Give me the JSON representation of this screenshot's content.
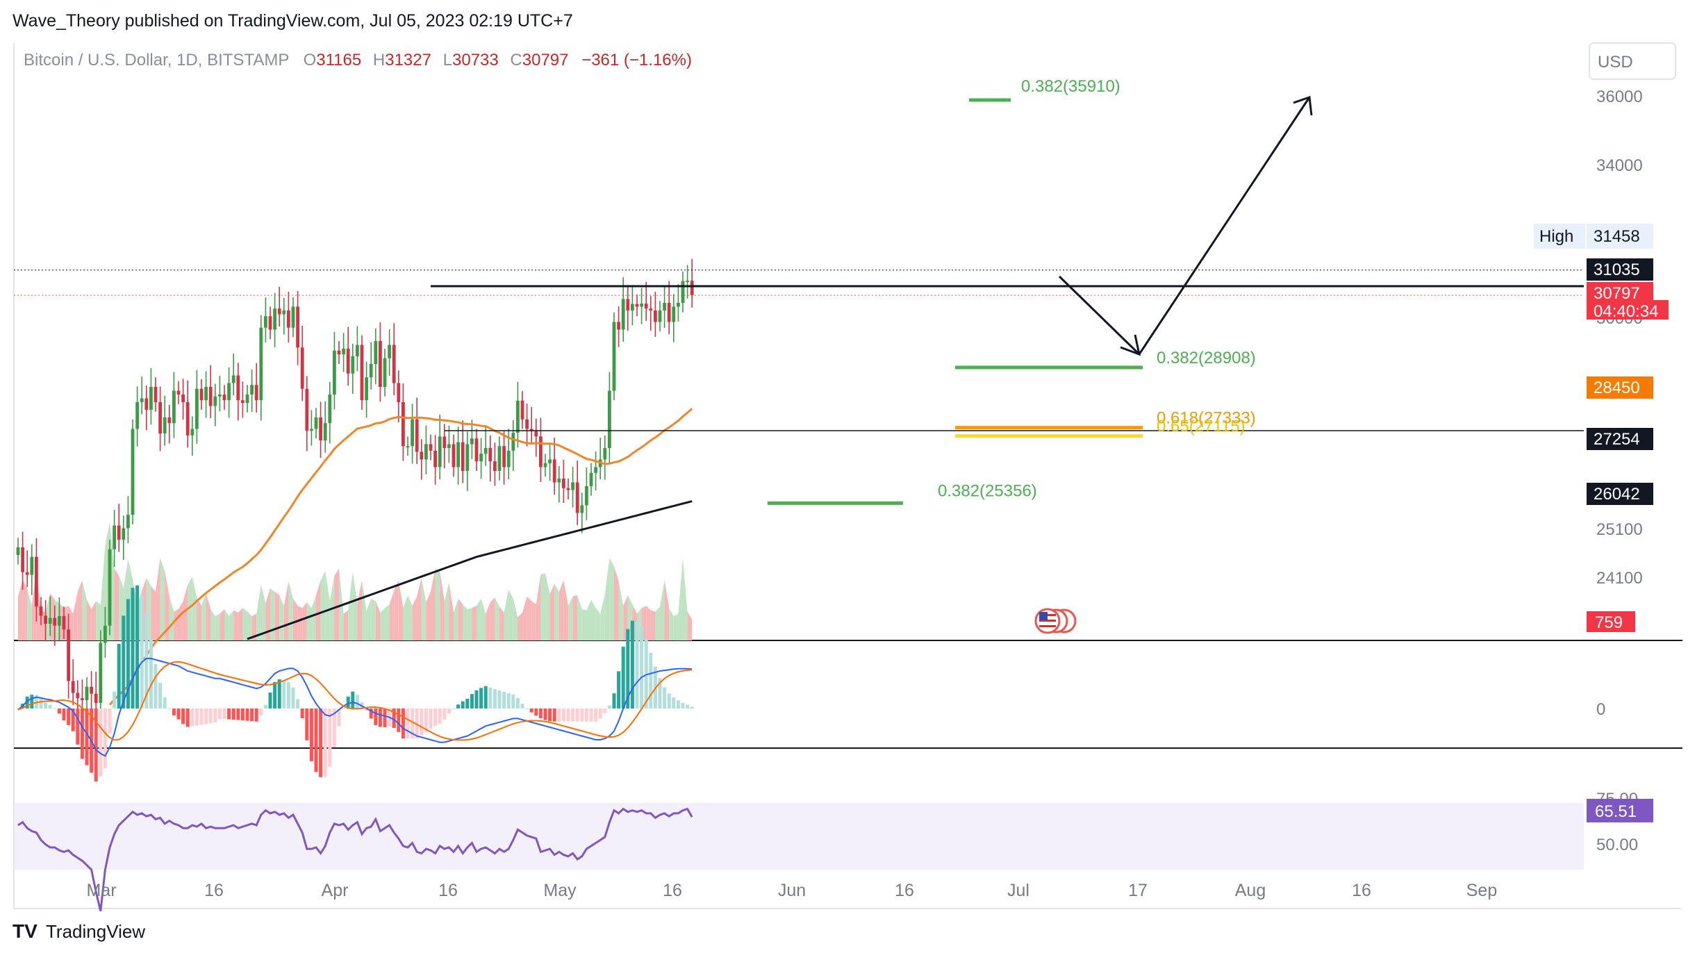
{
  "header": {
    "published": "Wave_Theory published on TradingView.com, Jul 05, 2023 02:19 UTC+7",
    "symbol": "Bitcoin / U.S. Dollar, 1D, BITSTAMP",
    "o_label": "O",
    "o_value": "31165",
    "h_label": "H",
    "h_value": "31327",
    "l_label": "L",
    "l_value": "30733",
    "c_label": "C",
    "c_value": "30797",
    "change": "−361 (−1.16%)"
  },
  "currency_button": "USD",
  "footer_logo": "TradingView",
  "colors": {
    "up": "#26a69a",
    "down": "#ef5350",
    "up_candle": "#3d9a46",
    "down_candle": "#d13545",
    "sma50": "#f0862a",
    "sma200": "#131722",
    "fib_green": "#4caf50",
    "fib_orange": "#ff9800",
    "fib_yellow": "#fdd835",
    "macd": "#2962ff",
    "signal": "#ff6d00",
    "rsi": "#7e57c2",
    "grid": "#e0e3eb"
  },
  "chart_data": [
    {
      "type": "candlestick",
      "title": "Bitcoin / U.S. Dollar, 1D, BITSTAMP",
      "xlabel": "",
      "ylabel": "USD",
      "x_ticks": [
        "Mar",
        "16",
        "Apr",
        "16",
        "May",
        "16",
        "Jun",
        "16",
        "Jul",
        "17",
        "Aug",
        "16",
        "Sep"
      ],
      "y_ticks": [
        "36000",
        "34000",
        "30000",
        "25100",
        "24100"
      ],
      "high_label": "High",
      "high_value": "31458",
      "price_labels": [
        {
          "value": "31035",
          "style": "black"
        },
        {
          "value": "30797",
          "style": "red"
        },
        {
          "value": "04:40:34",
          "style": "red"
        },
        {
          "value": "28450",
          "style": "orange"
        },
        {
          "value": "27254",
          "style": "black"
        },
        {
          "value": "26042",
          "style": "black"
        }
      ],
      "volume_label": "759",
      "fib_levels": [
        {
          "label": "0.382(35910)",
          "price": 35910,
          "color": "green"
        },
        {
          "label": "0.382(28908)",
          "price": 28908,
          "color": "green"
        },
        {
          "label": "0.618(27333)",
          "price": 27333,
          "color": "orange"
        },
        {
          "label": "0.65(27115)",
          "price": 27115,
          "color": "yellow"
        },
        {
          "label": "0.382(25356)",
          "price": 25356,
          "color": "green"
        }
      ],
      "horizontal_levels": [
        31035,
        27254
      ],
      "sma50_last": 28450,
      "sma200_last": 26042,
      "closes": [
        24200,
        23550,
        23480,
        23950,
        22650,
        22410,
        22200,
        22350,
        22150,
        22400,
        22050,
        20700,
        20390,
        20250,
        20200,
        20550,
        20370,
        20130,
        21700,
        22150,
        24150,
        24770,
        24400,
        24700,
        25050,
        27300,
        28000,
        28100,
        27800,
        28400,
        28000,
        27180,
        27600,
        27450,
        28300,
        28200,
        28000,
        27130,
        27300,
        28350,
        28050,
        28400,
        27900,
        28150,
        28200,
        28050,
        28500,
        28700,
        28050,
        27980,
        28200,
        28450,
        28050,
        29950,
        30250,
        29900,
        30450,
        30300,
        30400,
        29950,
        30500,
        29430,
        28350,
        27250,
        27300,
        27600,
        27000,
        27450,
        28200,
        29350,
        29250,
        29400,
        28750,
        29200,
        29500,
        28050,
        28650,
        29000,
        29600,
        28400,
        29150,
        29500,
        28500,
        28000,
        26850,
        26850,
        27550,
        26700,
        26500,
        26900,
        26730,
        26300,
        27100,
        26800,
        26900,
        26300,
        26950,
        26200,
        26900,
        27050,
        26450,
        26650,
        26800,
        26450,
        26200,
        26850,
        26300,
        26730,
        27200,
        28040,
        27550,
        27300,
        27240,
        27100,
        26300,
        26400,
        26500,
        25900,
        26000,
        25750,
        25700,
        25900,
        25100,
        25300,
        25800,
        26150,
        26300,
        26500,
        26800,
        28300,
        30100,
        29900,
        30700,
        30400,
        30570,
        30500,
        30580,
        30450,
        30400,
        30100,
        30400,
        30600,
        30100,
        30500,
        30600,
        31170,
        31180,
        30797
      ],
      "volume": [
        380,
        520,
        450,
        300,
        620,
        260,
        240,
        410,
        350,
        320,
        280,
        300,
        230,
        420,
        520,
        350,
        270,
        340,
        310,
        820,
        1020,
        620,
        560,
        450,
        700,
        530,
        300,
        430,
        540,
        470,
        420,
        710,
        600,
        380,
        250,
        270,
        340,
        480,
        550,
        370,
        300,
        410,
        270,
        210,
        230,
        270,
        210,
        260,
        240,
        280,
        250,
        210,
        230,
        480,
        320,
        450,
        420,
        390,
        300,
        510,
        360,
        300,
        280,
        330,
        280,
        390,
        520,
        600,
        340,
        560,
        620,
        230,
        260,
        590,
        320,
        520,
        250,
        360,
        340,
        240,
        280,
        310,
        430,
        520,
        280,
        390,
        300,
        380,
        540,
        330,
        420,
        620,
        600,
        340,
        500,
        240,
        360,
        310,
        270,
        280,
        300,
        360,
        230,
        330,
        370,
        290,
        240,
        440,
        360,
        200,
        240,
        380,
        340,
        310,
        570,
        580,
        400,
        490,
        420,
        520,
        300,
        380,
        390,
        270,
        260,
        350,
        280,
        230,
        400,
        710,
        640,
        510,
        300,
        390,
        310,
        230,
        280,
        300,
        260,
        250,
        290,
        520,
        280,
        210,
        230,
        710,
        250,
        180
      ],
      "macd": [
        -10,
        20,
        60,
        80,
        90,
        85,
        75,
        70,
        60,
        50,
        30,
        10,
        -20,
        -80,
        -150,
        -200,
        -260,
        -330,
        -360,
        -380,
        -310,
        -200,
        -50,
        60,
        150,
        240,
        320,
        370,
        400,
        400,
        390,
        380,
        370,
        360,
        350,
        340,
        320,
        300,
        290,
        280,
        270,
        260,
        250,
        240,
        240,
        230,
        220,
        210,
        200,
        190,
        180,
        170,
        160,
        170,
        200,
        240,
        280,
        300,
        310,
        320,
        320,
        300,
        250,
        180,
        100,
        40,
        -10,
        -50,
        -60,
        -40,
        -10,
        20,
        40,
        50,
        40,
        20,
        0,
        -20,
        -40,
        -50,
        -60,
        -70,
        -90,
        -120,
        -160,
        -180,
        -200,
        -220,
        -230,
        -240,
        -250,
        -260,
        -270,
        -270,
        -260,
        -250,
        -240,
        -230,
        -220,
        -200,
        -180,
        -160,
        -140,
        -130,
        -120,
        -110,
        -100,
        -90,
        -80,
        -80,
        -90,
        -100,
        -110,
        -120,
        -130,
        -140,
        -150,
        -160,
        -170,
        -180,
        -190,
        -200,
        -210,
        -220,
        -230,
        -240,
        -250,
        -250,
        -240,
        -220,
        -180,
        -100,
        0,
        90,
        160,
        210,
        250,
        270,
        280,
        290,
        300,
        305,
        310,
        315,
        318,
        318,
        318,
        315
      ],
      "rsi": [
        60,
        62,
        58,
        56,
        55,
        50,
        47,
        45,
        45,
        43,
        42,
        43,
        40,
        38,
        36,
        33,
        30,
        15,
        2,
        30,
        45,
        54,
        60,
        63,
        66,
        69,
        67,
        68,
        66,
        67,
        64,
        65,
        61,
        63,
        61,
        60,
        58,
        58,
        60,
        59,
        61,
        58,
        59,
        58,
        58,
        58,
        59,
        60,
        58,
        59,
        60,
        61,
        60,
        67,
        70,
        68,
        69,
        67,
        68,
        65,
        67,
        61,
        55,
        44,
        44,
        45,
        41,
        46,
        55,
        61,
        60,
        61,
        57,
        60,
        62,
        54,
        58,
        59,
        64,
        56,
        58,
        60,
        55,
        51,
        46,
        45,
        48,
        42,
        41,
        44,
        43,
        41,
        46,
        44,
        45,
        42,
        46,
        41,
        45,
        48,
        42,
        44,
        45,
        43,
        41,
        44,
        42,
        44,
        50,
        57,
        55,
        53,
        52,
        51,
        42,
        43,
        44,
        40,
        42,
        40,
        39,
        41,
        37,
        39,
        44,
        46,
        48,
        50,
        52,
        62,
        70,
        68,
        71,
        69,
        70,
        69,
        70,
        68,
        68,
        65,
        67,
        68,
        66,
        68,
        68,
        70,
        71,
        65.51
      ],
      "rsi_ticks": [
        "75.00",
        "50.00"
      ],
      "rsi_value": "65.51",
      "macd_zero_label": "0"
    }
  ]
}
